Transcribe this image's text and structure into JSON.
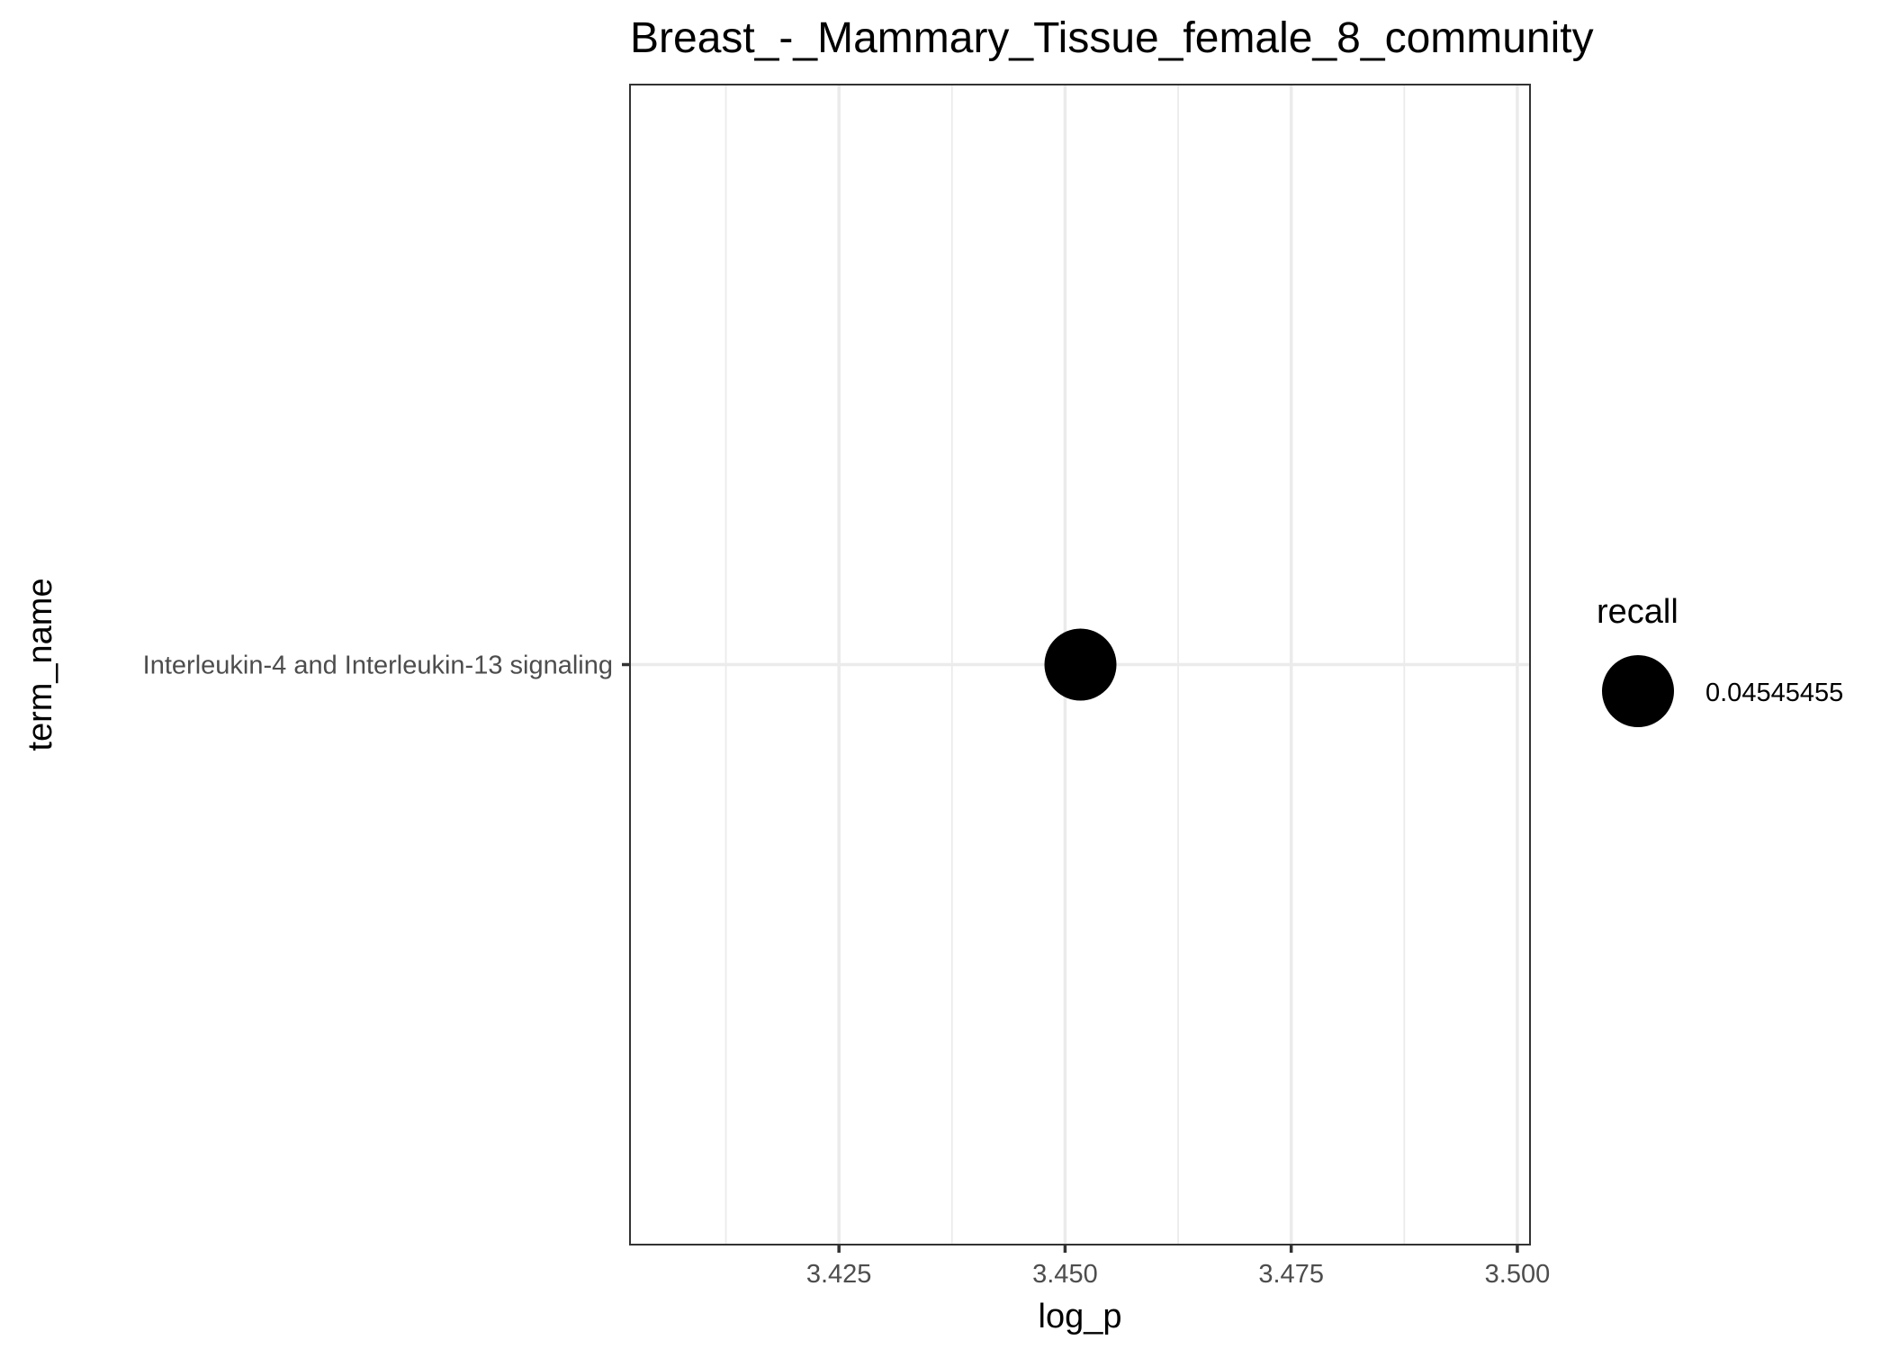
{
  "chart_data": {
    "type": "scatter",
    "title": "Breast_-_Mammary_Tissue_female_8_community",
    "xlabel": "log_p",
    "ylabel": "term_name",
    "x_ticks": [
      3.425,
      3.45,
      3.475,
      3.5
    ],
    "x_tick_labels": [
      "3.425",
      "3.450",
      "3.475",
      "3.500"
    ],
    "x_minor_ticks": [
      3.4125,
      3.4375,
      3.4625,
      3.4875
    ],
    "xlim": [
      3.4019,
      3.5014
    ],
    "categories": [
      "Interleukin-4 and Interleukin-13 signaling"
    ],
    "points": [
      {
        "term_name": "Interleukin-4 and Interleukin-13 signaling",
        "log_p": 3.4517,
        "recall": 0.04545455
      }
    ],
    "legend": {
      "title": "recall",
      "entries": [
        {
          "label": "0.04545455",
          "value": 0.04545455
        }
      ],
      "position": "right"
    },
    "grid": true,
    "point_color": "#000000"
  }
}
